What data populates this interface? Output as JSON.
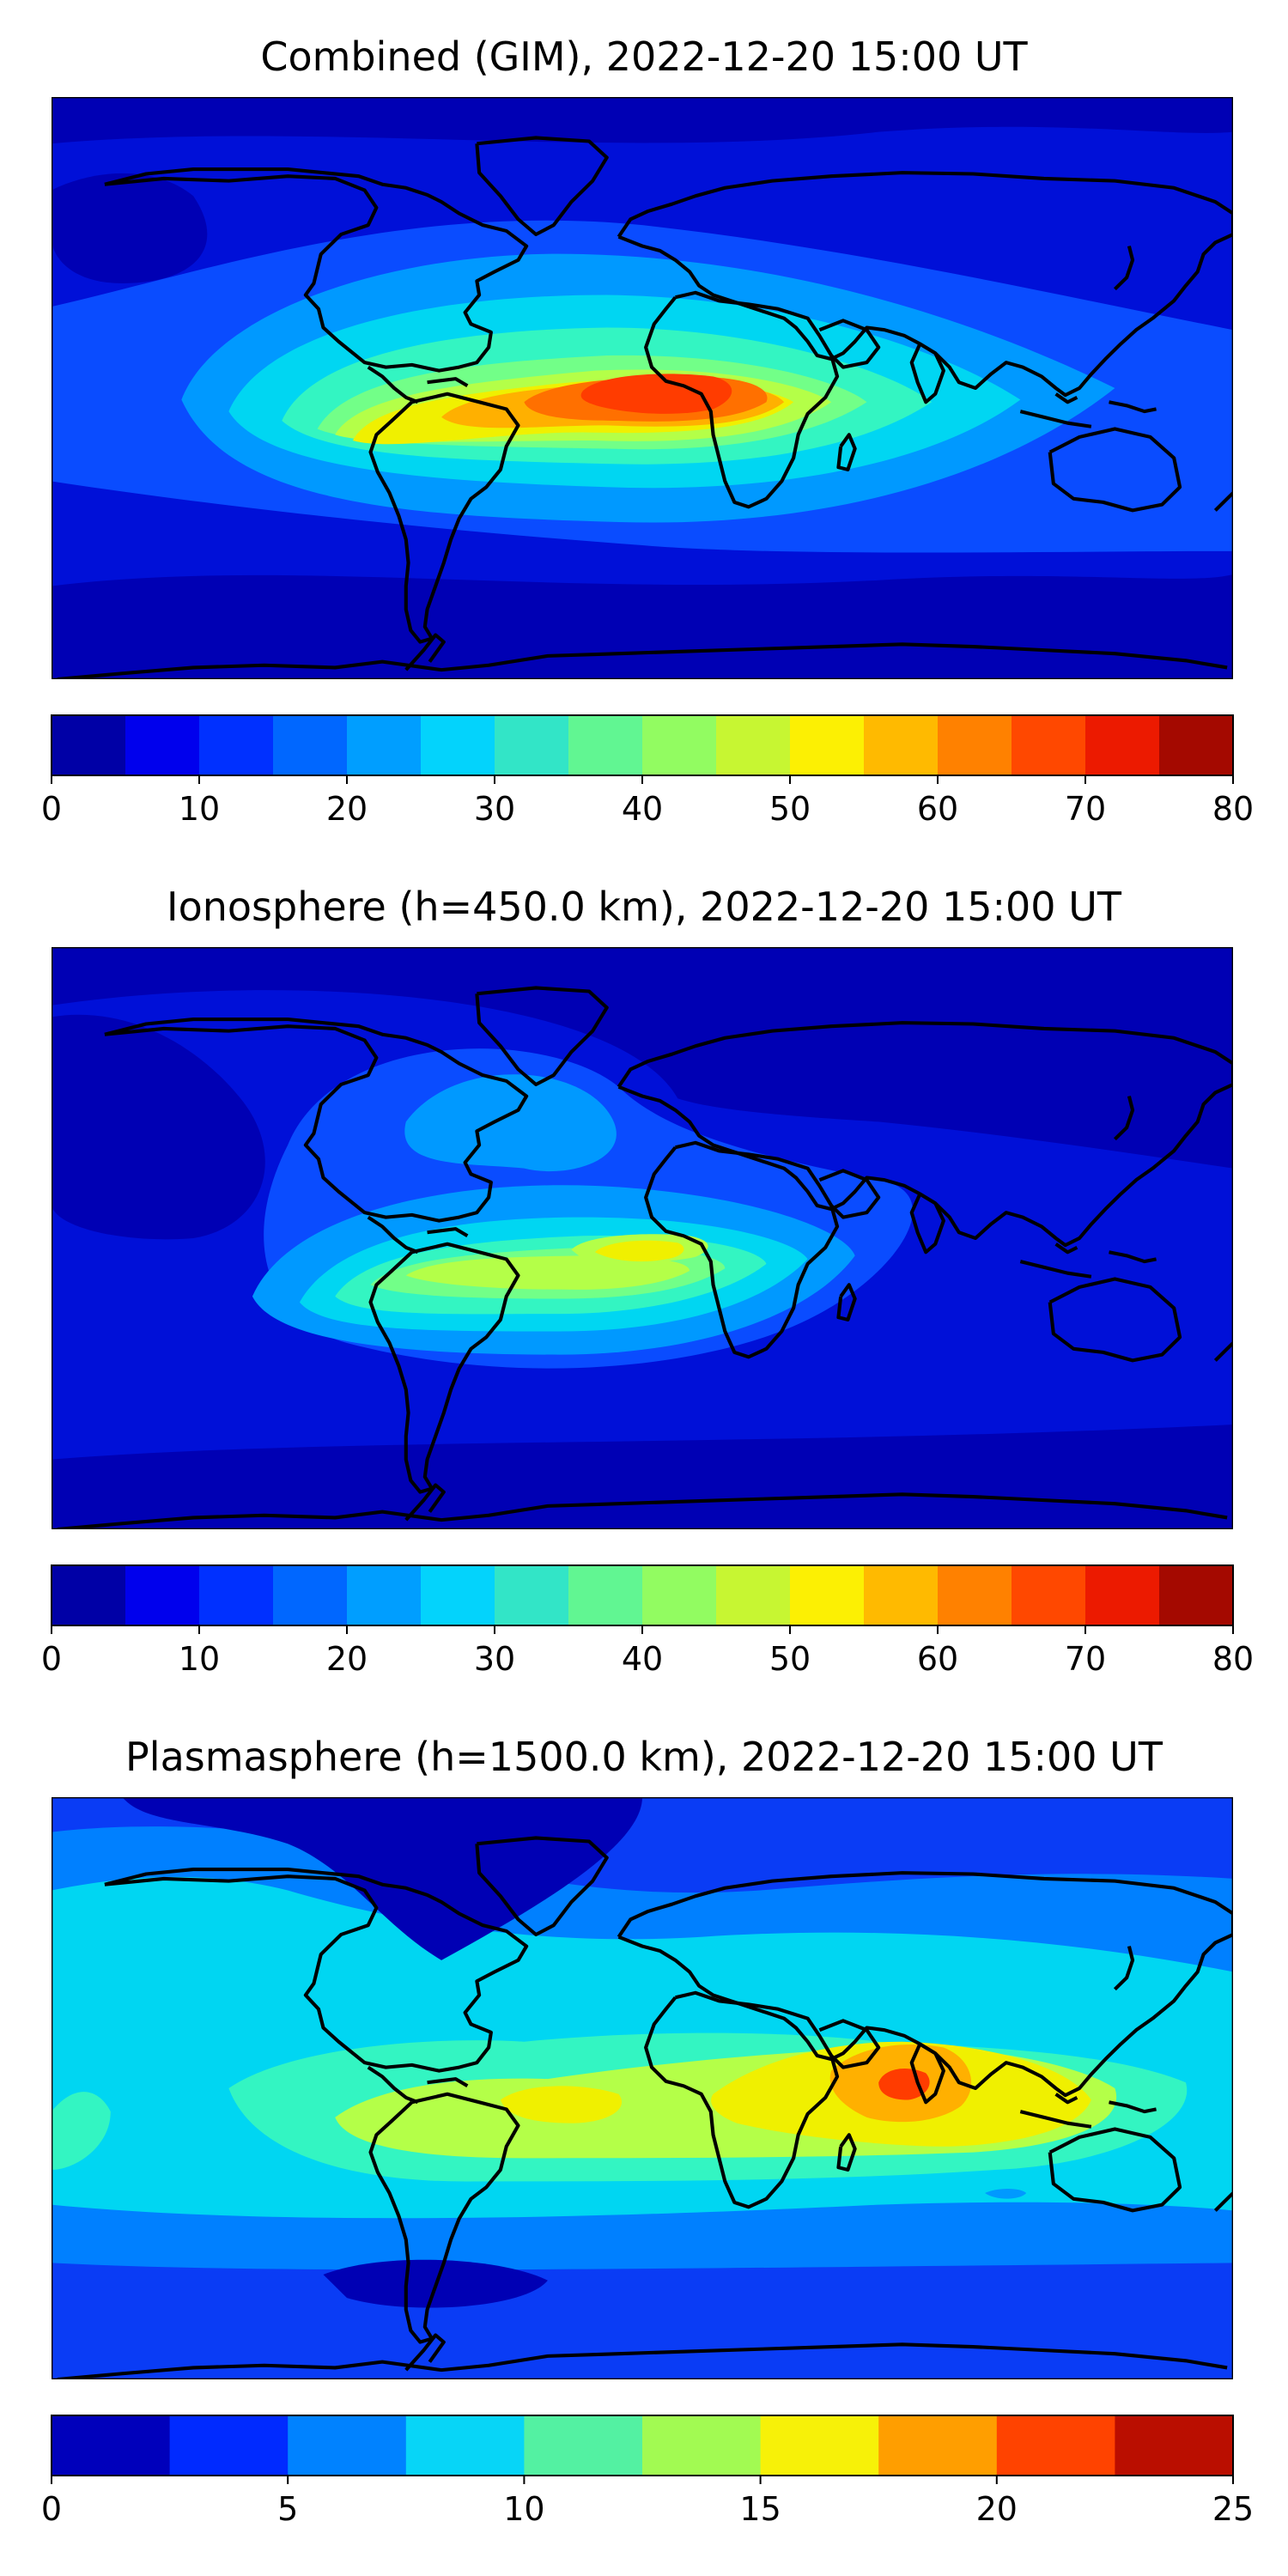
{
  "chart_data": [
    {
      "type": "heatmap",
      "title": "Combined (GIM), 2022-12-20 15:00 UT",
      "map": "world coastlines, longitude -180 to 180, latitude -90 to 90",
      "colorbar": {
        "ticks": [
          "0",
          "10",
          "20",
          "30",
          "40",
          "50",
          "60",
          "70",
          "80"
        ],
        "range": [
          0,
          80
        ],
        "levels": 16
      },
      "features": [
        {
          "label": "peak over central Africa",
          "lon": 8,
          "lat": 2,
          "value": 67
        },
        {
          "label": "high over Brazil",
          "lon": -42,
          "lat": -4,
          "value": 57
        },
        {
          "label": "low over northern Pacific/Siberia",
          "lon": 150,
          "lat": 70,
          "value": 7
        }
      ]
    },
    {
      "type": "heatmap",
      "title": "Ionosphere  (h=450.0 km), 2022-12-20 15:00 UT",
      "map": "world coastlines, longitude -180 to 180, latitude -90 to 90",
      "colorbar": {
        "ticks": [
          "0",
          "10",
          "20",
          "30",
          "40",
          "50",
          "60",
          "70",
          "80"
        ],
        "range": [
          0,
          80
        ],
        "levels": 16
      },
      "features": [
        {
          "label": "peak over central Africa",
          "lon": 0,
          "lat": -6,
          "value": 52
        },
        {
          "label": "high over Brazil",
          "lon": -42,
          "lat": -12,
          "value": 46
        },
        {
          "label": "low over Asia",
          "lon": 110,
          "lat": 55,
          "value": 3
        }
      ]
    },
    {
      "type": "heatmap",
      "title": "Plasmasphere (h=1500.0 km), 2022-12-20 15:00 UT",
      "map": "world coastlines, longitude -180 to 180, latitude -90 to 90",
      "colorbar": {
        "ticks": [
          "0",
          "5",
          "10",
          "15",
          "20",
          "25"
        ],
        "range": [
          0,
          25
        ],
        "levels": 10
      },
      "features": [
        {
          "label": "peak over Sri Lanka / Indian Ocean",
          "lon": 80,
          "lat": 6,
          "value": 21
        },
        {
          "label": "high over South Atlantic",
          "lon": -20,
          "lat": -8,
          "value": 16
        },
        {
          "label": "low over Arctic",
          "lon": -30,
          "lat": 80,
          "value": 1
        }
      ]
    }
  ]
}
